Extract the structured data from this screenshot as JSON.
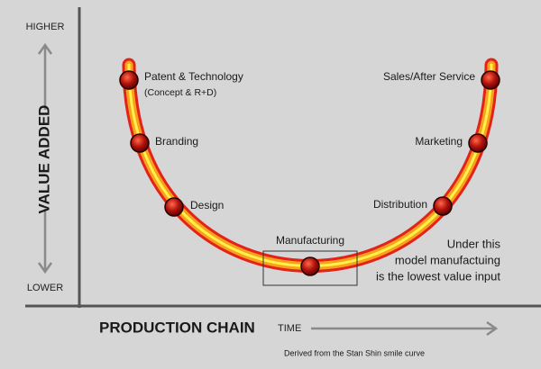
{
  "axes": {
    "y_high": "HIGHER",
    "y_low": "LOWER",
    "y_label": "VALUE ADDED",
    "x_label": "PRODUCTION CHAIN",
    "x_direction": "TIME"
  },
  "nodes": [
    {
      "label": "Patent & Technology",
      "sublabel": "(Concept & R+D)"
    },
    {
      "label": "Branding"
    },
    {
      "label": "Design"
    },
    {
      "label": "Manufacturing"
    },
    {
      "label": "Distribution"
    },
    {
      "label": "Marketing"
    },
    {
      "label": "Sales/After Service"
    }
  ],
  "annotation": [
    "Under this",
    "model manufactuing",
    "is the lowest value input"
  ],
  "footnote": "Derived from the Stan Shin smile curve"
}
